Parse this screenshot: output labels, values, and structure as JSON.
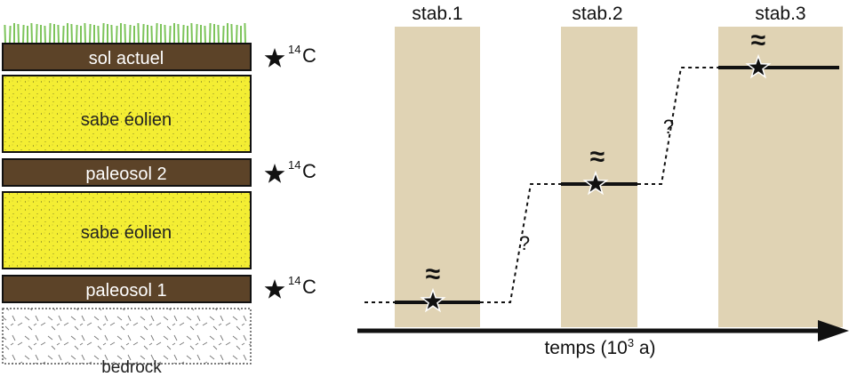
{
  "column": {
    "layers": [
      {
        "label": "sol actuel",
        "kind": "soil",
        "dated": true
      },
      {
        "label": "sabe éolien",
        "kind": "sand",
        "dated": false
      },
      {
        "label": "paleosol 2",
        "kind": "soil",
        "dated": true
      },
      {
        "label": "sabe éolien",
        "kind": "sand",
        "dated": false
      },
      {
        "label": "paleosol 1",
        "kind": "soil",
        "dated": true
      },
      {
        "label": "bedrock",
        "kind": "bedrock",
        "dated": false
      }
    ],
    "date_marker": {
      "symbol": "star-icon",
      "superscript": "14",
      "element": "C"
    }
  },
  "timeline": {
    "phases": [
      "stab.1",
      "stab.2",
      "stab.3"
    ],
    "uncertain_mark": "?",
    "approx_mark": "≈",
    "axis": {
      "text": "temps (10",
      "superscript": "3",
      "suffix": " a)"
    }
  },
  "colors": {
    "soil": "#5c4328",
    "sand": "#f4ee33",
    "bedrock": "#ffffff",
    "band": "#e0d3b4",
    "grass": "#7dc45a",
    "ink": "#111111"
  }
}
